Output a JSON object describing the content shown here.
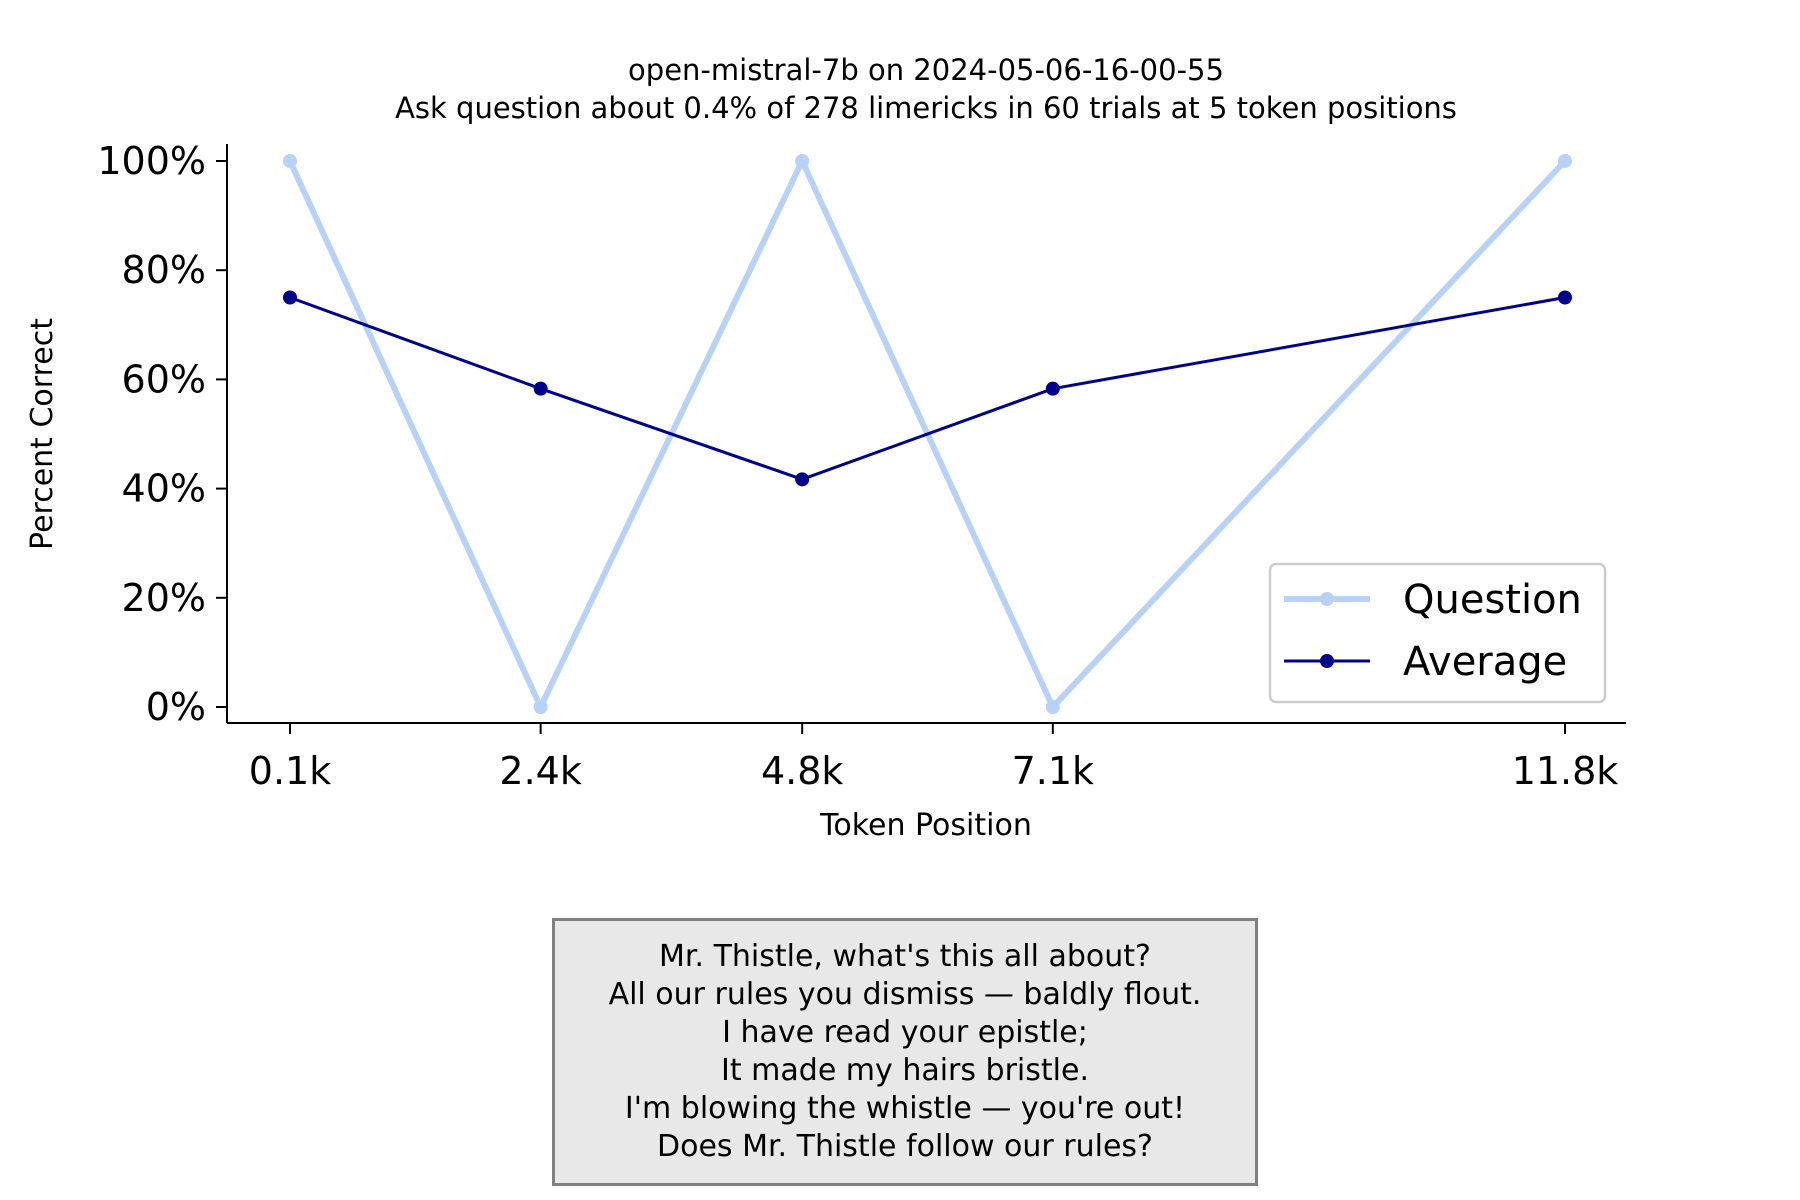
{
  "chart_data": {
    "type": "line",
    "title": "open-mistral-7b on 2024-05-06-16-00-55",
    "subtitle": "Ask question about 0.4% of 278 limericks in 60 trials at 5 token positions",
    "xlabel": "Token Position",
    "ylabel": "Percent Correct",
    "x": [
      0.1,
      2.4,
      4.8,
      7.1,
      11.8
    ],
    "x_tick_labels": [
      "0.1k",
      "2.4k",
      "4.8k",
      "7.1k",
      "11.8k"
    ],
    "y_tick_values": [
      0,
      20,
      40,
      60,
      80,
      100
    ],
    "y_tick_labels": [
      "0%",
      "20%",
      "40%",
      "60%",
      "80%",
      "100%"
    ],
    "ylim": [
      0,
      100
    ],
    "legend_position": "lower-right",
    "grid": false,
    "series": [
      {
        "name": "Question",
        "values": [
          100,
          0,
          100,
          0,
          100
        ],
        "color": "#b7d1f7"
      },
      {
        "name": "Average",
        "values": [
          75,
          58.3,
          41.7,
          58.3,
          75
        ],
        "color": "#00008b"
      }
    ]
  },
  "limerick": {
    "lines": [
      "Mr. Thistle, what's this all about?",
      "All our rules you dismiss — baldly flout.",
      "I have read your epistle;",
      "It made my hairs bristle.",
      "I'm blowing the whistle — you're out!",
      "Does Mr. Thistle follow our rules?"
    ]
  }
}
